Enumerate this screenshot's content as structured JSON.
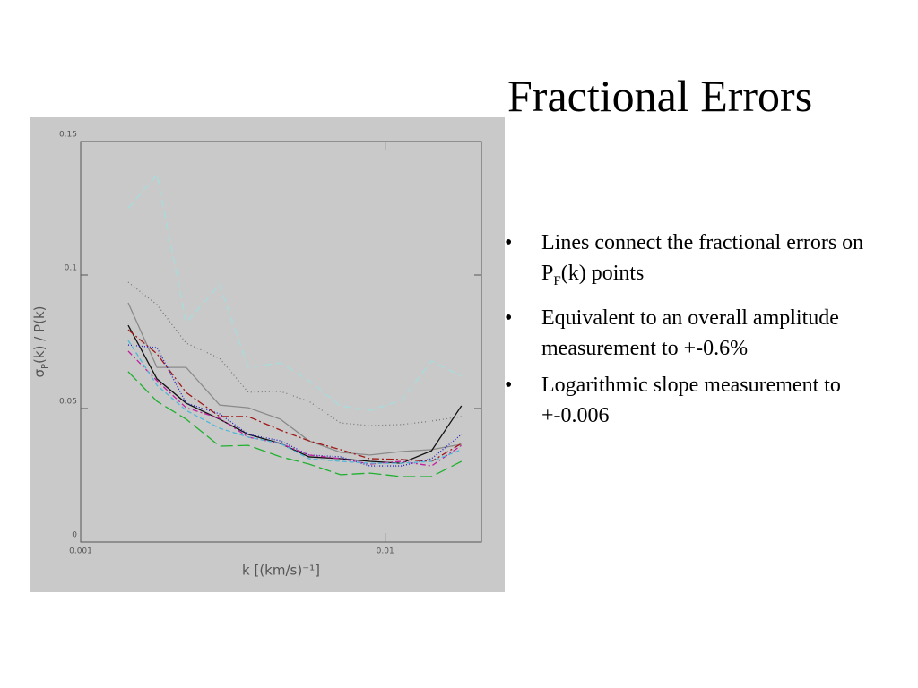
{
  "title": "Fractional Errors",
  "bullets": [
    {
      "parts": [
        "Lines connect the fractional errors on P",
        "F",
        "(k) points"
      ]
    },
    {
      "parts": [
        "Equivalent to an overall amplitude measurement to +-0.6%"
      ]
    },
    {
      "parts": [
        "Logarithmic slope measurement to +-0.006"
      ]
    }
  ],
  "chart_data": {
    "type": "line",
    "ylabel": {
      "symbol": "σ",
      "sub": "P",
      "rest": "(k) / P(k)"
    },
    "xlabel": "k [(km/s)⁻¹]",
    "xscale": "log",
    "xlim": [
      0.001,
      0.0207
    ],
    "xticks": [
      0.001,
      0.01
    ],
    "ylim": [
      0,
      0.15
    ],
    "yticks": [
      0,
      0.05,
      0.1,
      0.15
    ],
    "x": [
      0.001432,
      0.00178,
      0.00222,
      0.00286,
      0.00355,
      0.00453,
      0.00562,
      0.00713,
      0.00891,
      0.0113,
      0.0142,
      0.0178
    ],
    "series": [
      {
        "color": "#a8dcdc",
        "dash": "8,5",
        "values": [
          0.125,
          0.1376,
          0.0822,
          0.0963,
          0.0654,
          0.0671,
          0.0604,
          0.051,
          0.0493,
          0.053,
          0.0678,
          0.0621
        ]
      },
      {
        "color": "#777777",
        "dash": "1,3",
        "values": [
          0.0973,
          0.0889,
          0.0745,
          0.0688,
          0.0561,
          0.0564,
          0.0527,
          0.0446,
          0.0436,
          0.044,
          0.0453,
          0.047
        ]
      },
      {
        "color": "#8a8a8a",
        "dash": "none",
        "values": [
          0.0896,
          0.0654,
          0.0654,
          0.0513,
          0.0503,
          0.046,
          0.0379,
          0.0336,
          0.0326,
          0.0339,
          0.0346,
          0.0366
        ]
      },
      {
        "color": "#111111",
        "dash": "none",
        "values": [
          0.0812,
          0.0611,
          0.052,
          0.046,
          0.0403,
          0.0369,
          0.0319,
          0.0312,
          0.0302,
          0.0295,
          0.0342,
          0.051
        ]
      },
      {
        "color": "#a01818",
        "dash": "8,3,2,3",
        "values": [
          0.0795,
          0.0705,
          0.056,
          0.047,
          0.047,
          0.0419,
          0.0379,
          0.0346,
          0.0312,
          0.0309,
          0.0302,
          0.0369
        ]
      },
      {
        "color": "#2020c0",
        "dash": "1,2",
        "values": [
          0.0738,
          0.0728,
          0.052,
          0.048,
          0.0403,
          0.0379,
          0.0326,
          0.0319,
          0.0285,
          0.0285,
          0.0312,
          0.0403
        ]
      },
      {
        "color": "#c020a0",
        "dash": "6,3,2,3",
        "values": [
          0.0715,
          0.0604,
          0.0503,
          0.0463,
          0.0393,
          0.0369,
          0.0326,
          0.0312,
          0.0292,
          0.0302,
          0.0285,
          0.0362
        ]
      },
      {
        "color": "#50b8d8",
        "dash": "5,3",
        "values": [
          0.0755,
          0.0587,
          0.0493,
          0.0426,
          0.0393,
          0.0369,
          0.0312,
          0.0302,
          0.0295,
          0.0295,
          0.0302,
          0.0346
        ]
      },
      {
        "color": "#20b030",
        "dash": "14,5",
        "values": [
          0.0638,
          0.0527,
          0.046,
          0.0359,
          0.0362,
          0.0319,
          0.0292,
          0.0252,
          0.0258,
          0.0245,
          0.0245,
          0.0302
        ]
      }
    ]
  }
}
